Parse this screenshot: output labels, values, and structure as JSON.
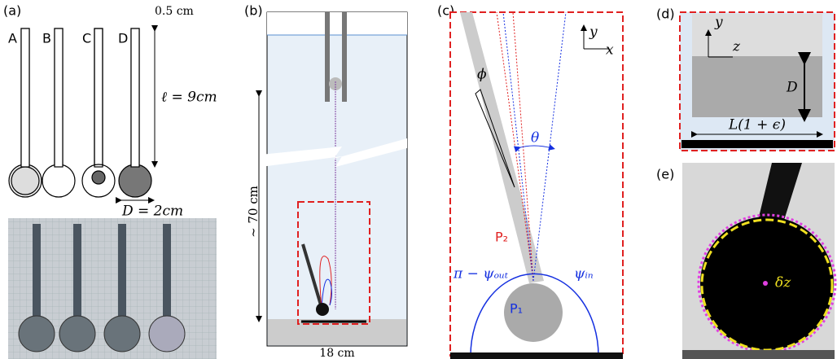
{
  "panels": [
    {
      "label": "(a)",
      "texts": [
        "0.5 cm",
        "A",
        "B",
        "C",
        "D",
        "ℓ = 9cm",
        "D = 2cm"
      ]
    },
    {
      "label": "(b)",
      "texts": [
        "~ 70 cm",
        "18 cm"
      ]
    },
    {
      "label": "(c)",
      "texts": [
        "y",
        "x",
        "ϕ",
        "θ",
        "P₂",
        "P₁",
        "π − ψₒᵤₜ",
        "ψᵢₙ"
      ]
    },
    {
      "label": "(d)",
      "texts": [
        "y",
        "z",
        "D",
        "L(1 + ϵ)"
      ]
    },
    {
      "label": "(e)",
      "texts": [
        "δz"
      ]
    }
  ]
}
